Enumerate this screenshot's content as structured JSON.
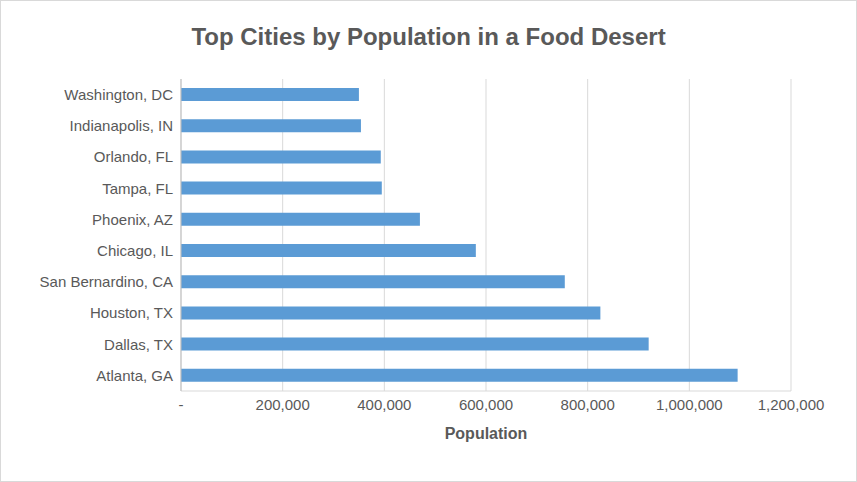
{
  "chart_data": {
    "type": "bar",
    "title": "Top Cities by Population in a Food Desert",
    "orientation": "horizontal",
    "categories": [
      "Washington, DC",
      "Indianapolis, IN",
      "Orlando, FL",
      "Tampa, FL",
      "Phoenix, AZ",
      "Chicago, IL",
      "San Bernardino, CA",
      "Houston, TX",
      "Dallas, TX",
      "Atlanta, GA"
    ],
    "values": [
      350000,
      354000,
      393000,
      395000,
      470000,
      580000,
      755000,
      825000,
      920000,
      1095000
    ],
    "color": "#5b9bd5",
    "xlabel": "Population",
    "xlim": [
      0,
      1200000
    ],
    "xticks": [
      {
        "value": 0,
        "label": "-"
      },
      {
        "value": 200000,
        "label": "200,000"
      },
      {
        "value": 400000,
        "label": "400,000"
      },
      {
        "value": 600000,
        "label": "600,000"
      },
      {
        "value": 800000,
        "label": "800,000"
      },
      {
        "value": 1000000,
        "label": "1,000,000"
      },
      {
        "value": 1200000,
        "label": "1,200,000"
      }
    ],
    "grid": true
  }
}
